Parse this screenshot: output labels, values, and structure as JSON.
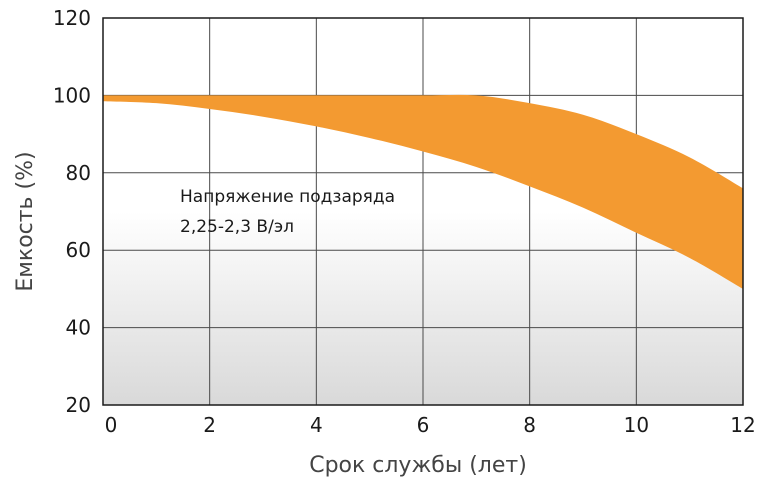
{
  "chart_data": {
    "type": "area",
    "xlabel": "Срок службы (лет)",
    "ylabel": "Емкость (%)",
    "xlim": [
      0,
      12
    ],
    "ylim": [
      20,
      120
    ],
    "xticks": [
      "0",
      "2",
      "4",
      "6",
      "8",
      "10",
      "12"
    ],
    "yticks": [
      "20",
      "40",
      "60",
      "80",
      "100",
      "120"
    ],
    "grid": true,
    "annotation": [
      "Напряжение подзаряда",
      "2,25-2,3 В/эл"
    ],
    "band": {
      "upper": {
        "x": [
          0,
          1,
          2,
          3,
          4,
          5,
          6,
          7,
          8,
          9,
          10,
          11,
          12
        ],
        "y": [
          100,
          100,
          100,
          100,
          100,
          100,
          100,
          100,
          98,
          95,
          90,
          84,
          76
        ]
      },
      "lower": {
        "x": [
          0,
          1,
          2,
          3,
          4,
          5,
          6,
          7,
          8,
          9,
          10,
          11,
          12
        ],
        "y": [
          98.5,
          98,
          96.5,
          94.5,
          92,
          89,
          85.5,
          81.5,
          76.5,
          71,
          64.5,
          58,
          50
        ]
      }
    },
    "colors": {
      "band": "#f39a31",
      "bg_top": "#ffffff",
      "bg_bottom": "#d9d9d9"
    }
  }
}
